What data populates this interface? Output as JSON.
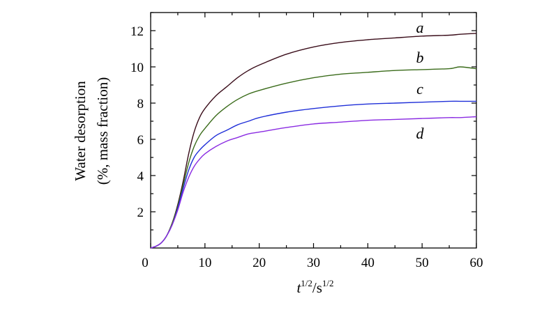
{
  "chart_data": {
    "type": "line",
    "ylabel_line1": "Water desorption",
    "ylabel_line2": "(%, mass fraction)",
    "xlabel": {
      "t": "t",
      "sup1": "1/2",
      "slash": "/s",
      "sup2": "1/2"
    },
    "xlim": [
      0,
      60
    ],
    "ylim": [
      0,
      13
    ],
    "xticks": [
      0,
      10,
      20,
      30,
      40,
      50,
      60
    ],
    "yticks": [
      2,
      4,
      6,
      8,
      10,
      12
    ],
    "origin_label": "0",
    "grid": false,
    "x": [
      0,
      1,
      2,
      3,
      4,
      5,
      6,
      7,
      8,
      9,
      10,
      12,
      14,
      16,
      18,
      20,
      25,
      30,
      35,
      40,
      45,
      50,
      55,
      57,
      60
    ],
    "series": [
      {
        "label": "a",
        "color": "#3a0d1a",
        "values": [
          0,
          0.1,
          0.3,
          0.7,
          1.4,
          2.4,
          3.7,
          5.2,
          6.4,
          7.2,
          7.7,
          8.4,
          8.9,
          9.4,
          9.8,
          10.1,
          10.7,
          11.1,
          11.35,
          11.5,
          11.6,
          11.7,
          11.75,
          11.8,
          11.85
        ]
      },
      {
        "label": "b",
        "color": "#3a6b1a",
        "values": [
          0,
          0.1,
          0.3,
          0.7,
          1.4,
          2.3,
          3.5,
          4.7,
          5.6,
          6.2,
          6.6,
          7.3,
          7.8,
          8.2,
          8.5,
          8.7,
          9.1,
          9.4,
          9.6,
          9.7,
          9.8,
          9.85,
          9.9,
          10.0,
          9.9
        ]
      },
      {
        "label": "c",
        "color": "#1f2fd8",
        "values": [
          0,
          0.1,
          0.3,
          0.7,
          1.3,
          2.2,
          3.3,
          4.3,
          5.0,
          5.4,
          5.7,
          6.2,
          6.5,
          6.8,
          7.0,
          7.2,
          7.5,
          7.7,
          7.85,
          7.95,
          8.0,
          8.05,
          8.1,
          8.1,
          8.1
        ]
      },
      {
        "label": "d",
        "color": "#8a2be2",
        "values": [
          0,
          0.1,
          0.3,
          0.7,
          1.3,
          2.1,
          3.1,
          3.9,
          4.5,
          4.9,
          5.2,
          5.6,
          5.9,
          6.1,
          6.3,
          6.4,
          6.65,
          6.85,
          6.95,
          7.05,
          7.1,
          7.15,
          7.2,
          7.2,
          7.25
        ]
      }
    ]
  }
}
